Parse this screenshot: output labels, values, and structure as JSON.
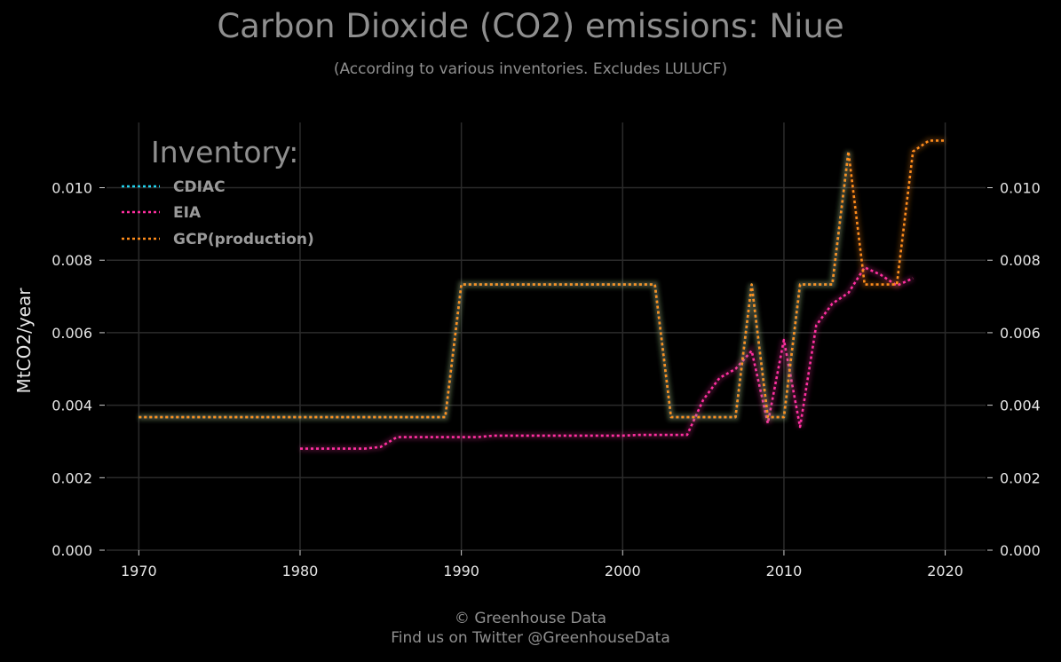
{
  "title": "Carbon Dioxide (CO2) emissions: Niue",
  "subtitle": "(According to various inventories. Excludes LULUCF)",
  "footer": {
    "line1": "© Greenhouse Data",
    "line2": "Find us on Twitter @GreenhouseData"
  },
  "chart_data": {
    "type": "line",
    "title": "Carbon Dioxide (CO2) emissions: Niue",
    "subtitle": "(According to various inventories. Excludes LULUCF)",
    "ylabel": "MtCO2/year",
    "xlabel": "",
    "xlim": [
      1968,
      2022.5
    ],
    "ylim": [
      0,
      0.0118
    ],
    "x_ticks": [
      1970,
      1980,
      1990,
      2000,
      2010,
      2020
    ],
    "y_ticks": [
      0,
      0.002,
      0.004,
      0.006,
      0.008,
      0.01
    ],
    "y_tick_labels": [
      "0.000",
      "0.002",
      "0.004",
      "0.006",
      "0.008",
      "0.010"
    ],
    "grid": true,
    "background": "#000000",
    "legend": {
      "title": "Inventory:",
      "placement": "top-left",
      "entries": [
        "CDIAC",
        "EIA",
        "GCP(production)"
      ]
    },
    "series": [
      {
        "name": "CDIAC",
        "color": "#22d3ee",
        "x": [
          1970,
          1971,
          1972,
          1973,
          1974,
          1975,
          1976,
          1977,
          1978,
          1979,
          1980,
          1981,
          1982,
          1983,
          1984,
          1985,
          1986,
          1987,
          1988,
          1989,
          1990,
          1991,
          1992,
          1993,
          1994,
          1995,
          1996,
          1997,
          1998,
          1999,
          2000,
          2001,
          2002,
          2003,
          2004,
          2005,
          2006,
          2007,
          2008,
          2009,
          2010,
          2011,
          2012,
          2013,
          2014
        ],
        "y": [
          0.00367,
          0.00367,
          0.00367,
          0.00367,
          0.00367,
          0.00367,
          0.00367,
          0.00367,
          0.00367,
          0.00367,
          0.00367,
          0.00367,
          0.00367,
          0.00367,
          0.00367,
          0.00367,
          0.00367,
          0.00367,
          0.00367,
          0.00367,
          0.00733,
          0.00733,
          0.00733,
          0.00733,
          0.00733,
          0.00733,
          0.00733,
          0.00733,
          0.00733,
          0.00733,
          0.00733,
          0.00733,
          0.00733,
          0.00367,
          0.00367,
          0.00367,
          0.00367,
          0.00367,
          0.00733,
          0.00367,
          0.00367,
          0.00733,
          0.00733,
          0.00733,
          0.011
        ]
      },
      {
        "name": "EIA",
        "color": "#ff2fa0",
        "x": [
          1980,
          1981,
          1982,
          1983,
          1984,
          1985,
          1986,
          1987,
          1988,
          1989,
          1990,
          1991,
          1992,
          1993,
          1994,
          1995,
          1996,
          1997,
          1998,
          1999,
          2000,
          2001,
          2002,
          2003,
          2004,
          2005,
          2006,
          2007,
          2008,
          2009,
          2010,
          2011,
          2012,
          2013,
          2014,
          2015,
          2016,
          2017,
          2018
        ],
        "y": [
          0.0028,
          0.0028,
          0.0028,
          0.0028,
          0.0028,
          0.00285,
          0.00312,
          0.00312,
          0.00312,
          0.00312,
          0.00312,
          0.00312,
          0.00316,
          0.00316,
          0.00316,
          0.00316,
          0.00316,
          0.00316,
          0.00316,
          0.00316,
          0.00316,
          0.00318,
          0.00318,
          0.00318,
          0.00318,
          0.00415,
          0.00475,
          0.005,
          0.0055,
          0.0035,
          0.0058,
          0.0034,
          0.0062,
          0.0068,
          0.0071,
          0.0078,
          0.0076,
          0.0073,
          0.0075
        ]
      },
      {
        "name": "GCP(production)",
        "color": "#ff8c1a",
        "x": [
          1970,
          1971,
          1972,
          1973,
          1974,
          1975,
          1976,
          1977,
          1978,
          1979,
          1980,
          1981,
          1982,
          1983,
          1984,
          1985,
          1986,
          1987,
          1988,
          1989,
          1990,
          1991,
          1992,
          1993,
          1994,
          1995,
          1996,
          1997,
          1998,
          1999,
          2000,
          2001,
          2002,
          2003,
          2004,
          2005,
          2006,
          2007,
          2008,
          2009,
          2010,
          2011,
          2012,
          2013,
          2014,
          2015,
          2016,
          2017,
          2018,
          2019,
          2020
        ],
        "y": [
          0.00367,
          0.00367,
          0.00367,
          0.00367,
          0.00367,
          0.00367,
          0.00367,
          0.00367,
          0.00367,
          0.00367,
          0.00367,
          0.00367,
          0.00367,
          0.00367,
          0.00367,
          0.00367,
          0.00367,
          0.00367,
          0.00367,
          0.00367,
          0.00733,
          0.00733,
          0.00733,
          0.00733,
          0.00733,
          0.00733,
          0.00733,
          0.00733,
          0.00733,
          0.00733,
          0.00733,
          0.00733,
          0.00733,
          0.00367,
          0.00367,
          0.00367,
          0.00367,
          0.00367,
          0.00733,
          0.00367,
          0.00367,
          0.00733,
          0.00733,
          0.00733,
          0.011,
          0.00733,
          0.00733,
          0.00733,
          0.011,
          0.0113,
          0.0113
        ]
      }
    ]
  }
}
